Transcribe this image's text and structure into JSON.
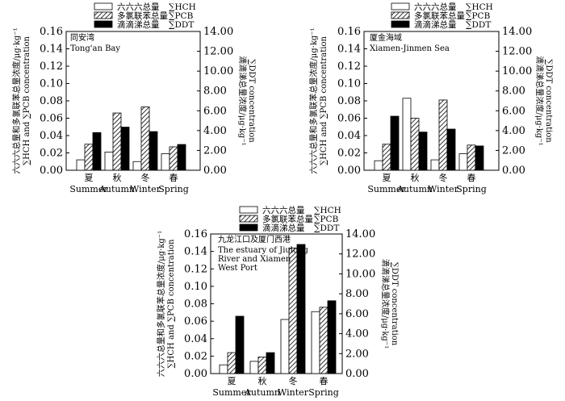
{
  "legend": [
    {
      "zh": "六六六总量",
      "sym": "∑HCH",
      "series": "hch"
    },
    {
      "zh": "多氯联苯总量",
      "sym": "∑PCB",
      "series": "pcb"
    },
    {
      "zh": "滴滴涕总量",
      "sym": "∑DDT",
      "series": "ddt"
    }
  ],
  "y_left_label": [
    "六六六总量和多氯联苯总量浓度/μg·kg⁻¹",
    "∑HCH and ∑PCB concentration"
  ],
  "y_right_label": [
    "滴滴涕总量浓度/μg·kg⁻¹",
    "∑DDT concentration"
  ],
  "chart_data": [
    {
      "type": "bar",
      "title_zh": "同安湾",
      "title_en": [
        "Tong'an Bay"
      ],
      "categories": [
        "Summer",
        "Autumn",
        "Winter",
        "Spring"
      ],
      "categories_zh": [
        "夏",
        "秋",
        "冬",
        "春"
      ],
      "series": [
        {
          "name": "∑HCH",
          "axis": "left",
          "values": [
            0.012,
            0.021,
            0.01,
            0.019
          ]
        },
        {
          "name": "∑PCB",
          "axis": "left",
          "values": [
            0.03,
            0.066,
            0.073,
            0.027
          ]
        },
        {
          "name": "∑DDT",
          "axis": "right",
          "values": [
            3.8,
            4.35,
            3.9,
            2.6
          ]
        }
      ],
      "ylim_left": [
        0,
        0.16
      ],
      "yticks_left": [
        "0.00",
        "0.02",
        "0.04",
        "0.06",
        "0.08",
        "0.10",
        "0.12",
        "0.14",
        "0.16"
      ],
      "ylim_right": [
        0,
        14
      ],
      "yticks_right": [
        "0.00",
        "2.00",
        "4.00",
        "6.00",
        "8.00",
        "10.00",
        "12.00",
        "14.00"
      ]
    },
    {
      "type": "bar",
      "title_zh": "厦金海域",
      "title_en": [
        "Xiamen-Jinmen Sea"
      ],
      "categories": [
        "Summer",
        "Autumn",
        "Winter",
        "Spring"
      ],
      "categories_zh": [
        "夏",
        "秋",
        "冬",
        "春"
      ],
      "series": [
        {
          "name": "∑HCH",
          "axis": "left",
          "values": [
            0.011,
            0.083,
            0.012,
            0.019
          ]
        },
        {
          "name": "∑PCB",
          "axis": "left",
          "values": [
            0.03,
            0.06,
            0.081,
            0.029
          ]
        },
        {
          "name": "∑DDT",
          "axis": "right",
          "values": [
            5.45,
            3.85,
            4.15,
            2.45
          ]
        }
      ],
      "ylim_left": [
        0,
        0.16
      ],
      "yticks_left": [
        "0.00",
        "0.02",
        "0.04",
        "0.06",
        "0.08",
        "0.10",
        "0.12",
        "0.14",
        "0.16"
      ],
      "ylim_right": [
        0,
        14
      ],
      "yticks_right": [
        "0.00",
        "2.00",
        "4.00",
        "6.00",
        "8.00",
        "10.00",
        "12.00",
        "14.00"
      ]
    },
    {
      "type": "bar",
      "title_zh": "九龙江口及厦门西港",
      "title_en": [
        "The estuary of Jiulong",
        "River and Xiamen",
        "West Port"
      ],
      "categories": [
        "Summer",
        "Autumn",
        "Winter",
        "Spring"
      ],
      "categories_zh": [
        "夏",
        "秋",
        "冬",
        "春"
      ],
      "series": [
        {
          "name": "∑HCH",
          "axis": "left",
          "values": [
            0.01,
            0.014,
            0.062,
            0.071
          ]
        },
        {
          "name": "∑PCB",
          "axis": "left",
          "values": [
            0.024,
            0.019,
            0.144,
            0.076
          ]
        },
        {
          "name": "∑DDT",
          "axis": "right",
          "values": [
            5.75,
            2.1,
            12.95,
            7.3
          ]
        }
      ],
      "ylim_left": [
        0,
        0.16
      ],
      "yticks_left": [
        "0.00",
        "0.02",
        "0.04",
        "0.06",
        "0.08",
        "0.10",
        "0.12",
        "0.14",
        "0.16"
      ],
      "ylim_right": [
        0,
        14
      ],
      "yticks_right": [
        "0.00",
        "2.00",
        "4.00",
        "6.00",
        "8.00",
        "10.00",
        "12.00",
        "14.00"
      ]
    }
  ]
}
